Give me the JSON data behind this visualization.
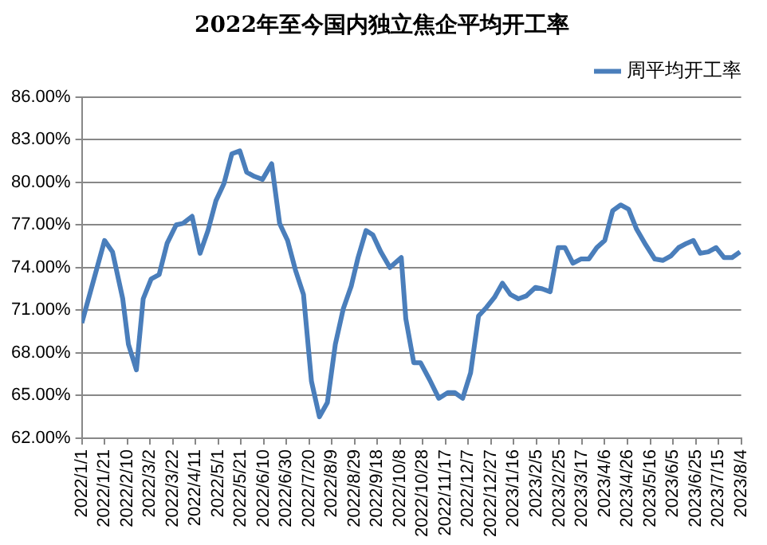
{
  "chart_data": {
    "type": "line",
    "title": "2022年至今国内独立焦企平均开工率",
    "legend": "top right",
    "grid": "y",
    "marker": "none",
    "line_style": "solid",
    "xlim": [
      "2022-01-01",
      "2023-08-04"
    ],
    "xticks": [
      {
        "value": "2022-01-01",
        "label": "2022/1/1"
      },
      {
        "value": "2022-01-21",
        "label": "2022/1/21"
      },
      {
        "value": "2022-02-10",
        "label": "2022/2/10"
      },
      {
        "value": "2022-03-02",
        "label": "2022/3/2"
      },
      {
        "value": "2022-03-22",
        "label": "2022/3/22"
      },
      {
        "value": "2022-04-11",
        "label": "2022/4/11"
      },
      {
        "value": "2022-05-01",
        "label": "2022/5/1"
      },
      {
        "value": "2022-05-21",
        "label": "2022/5/21"
      },
      {
        "value": "2022-06-10",
        "label": "2022/6/10"
      },
      {
        "value": "2022-06-30",
        "label": "2022/6/30"
      },
      {
        "value": "2022-07-20",
        "label": "2022/7/20"
      },
      {
        "value": "2022-08-09",
        "label": "2022/8/9"
      },
      {
        "value": "2022-08-29",
        "label": "2022/8/29"
      },
      {
        "value": "2022-09-18",
        "label": "2022/9/18"
      },
      {
        "value": "2022-10-08",
        "label": "2022/10/8"
      },
      {
        "value": "2022-10-28",
        "label": "2022/10/28"
      },
      {
        "value": "2022-11-17",
        "label": "2022/11/17"
      },
      {
        "value": "2022-12-07",
        "label": "2022/12/7"
      },
      {
        "value": "2022-12-27",
        "label": "2022/12/27"
      },
      {
        "value": "2023-01-16",
        "label": "2023/1/16"
      },
      {
        "value": "2023-02-05",
        "label": "2023/2/5"
      },
      {
        "value": "2023-02-25",
        "label": "2023/2/25"
      },
      {
        "value": "2023-03-17",
        "label": "2023/3/17"
      },
      {
        "value": "2023-04-06",
        "label": "2023/4/6"
      },
      {
        "value": "2023-04-26",
        "label": "2023/4/26"
      },
      {
        "value": "2023-05-16",
        "label": "2023/5/16"
      },
      {
        "value": "2023-06-05",
        "label": "2023/6/5"
      },
      {
        "value": "2023-06-25",
        "label": "2023/6/25"
      },
      {
        "value": "2023-07-15",
        "label": "2023/7/15"
      },
      {
        "value": "2023-08-04",
        "label": "2023/8/4"
      }
    ],
    "ylim": [
      62,
      86
    ],
    "yticks": [
      {
        "value": 62,
        "label": "62.00%"
      },
      {
        "value": 65,
        "label": "65.00%"
      },
      {
        "value": 68,
        "label": "68.00%"
      },
      {
        "value": 71,
        "label": "71.00%"
      },
      {
        "value": 74,
        "label": "74.00%"
      },
      {
        "value": 77,
        "label": "77.00%"
      },
      {
        "value": 80,
        "label": "80.00%"
      },
      {
        "value": 83,
        "label": "83.00%"
      },
      {
        "value": 86,
        "label": "86.00%"
      }
    ],
    "x": [
      "2022-01-01",
      "2022-01-21",
      "2022-01-28",
      "2022-02-06",
      "2022-02-11",
      "2022-02-18",
      "2022-02-24",
      "2022-03-03",
      "2022-03-10",
      "2022-03-17",
      "2022-03-25",
      "2022-03-31",
      "2022-04-08",
      "2022-04-15",
      "2022-04-22",
      "2022-04-29",
      "2022-05-06",
      "2022-05-13",
      "2022-05-20",
      "2022-05-26",
      "2022-06-02",
      "2022-06-09",
      "2022-06-17",
      "2022-06-24",
      "2022-07-01",
      "2022-07-08",
      "2022-07-15",
      "2022-07-22",
      "2022-07-29",
      "2022-08-05",
      "2022-08-12",
      "2022-08-19",
      "2022-08-26",
      "2022-09-01",
      "2022-09-08",
      "2022-09-14",
      "2022-09-21",
      "2022-09-29",
      "2022-10-09",
      "2022-10-13",
      "2022-10-20",
      "2022-10-26",
      "2022-11-03",
      "2022-11-11",
      "2022-11-19",
      "2022-11-25",
      "2022-12-02",
      "2022-12-09",
      "2022-12-16",
      "2022-12-23",
      "2022-12-30",
      "2023-01-06",
      "2023-01-13",
      "2023-01-20",
      "2023-01-27",
      "2023-02-04",
      "2023-02-10",
      "2023-02-17",
      "2023-02-24",
      "2023-03-02",
      "2023-03-09",
      "2023-03-16",
      "2023-03-23",
      "2023-03-30",
      "2023-04-06",
      "2023-04-13",
      "2023-04-20",
      "2023-04-27",
      "2023-05-04",
      "2023-05-12",
      "2023-05-20",
      "2023-05-27",
      "2023-06-03",
      "2023-06-10",
      "2023-06-17",
      "2023-06-23",
      "2023-06-29",
      "2023-07-06",
      "2023-07-13",
      "2023-07-20",
      "2023-07-27",
      "2023-08-03"
    ],
    "series": [
      {
        "name": "周平均开工率",
        "color": "#4a7ebb",
        "values": [
          70.1,
          75.9,
          75.1,
          71.8,
          68.6,
          66.8,
          71.8,
          73.2,
          73.5,
          75.7,
          77.0,
          77.1,
          77.6,
          75.0,
          76.6,
          78.7,
          79.9,
          82.0,
          82.2,
          80.7,
          80.4,
          80.2,
          81.3,
          77.1,
          75.9,
          73.8,
          72.1,
          66.0,
          63.5,
          64.5,
          68.6,
          71.1,
          72.7,
          74.7,
          76.6,
          76.3,
          75.1,
          74.0,
          74.7,
          70.4,
          67.3,
          67.3,
          66.1,
          64.8,
          65.2,
          65.2,
          64.8,
          66.6,
          70.6,
          71.2,
          71.9,
          72.9,
          72.1,
          71.8,
          72.0,
          72.6,
          72.5,
          72.3,
          75.4,
          75.4,
          74.3,
          74.6,
          74.6,
          75.4,
          75.9,
          78.0,
          78.4,
          78.1,
          76.7,
          75.6,
          74.6,
          74.5,
          74.8,
          75.4,
          75.7,
          75.9,
          75.0,
          75.1,
          75.4,
          74.7,
          74.7,
          75.1
        ]
      }
    ]
  }
}
